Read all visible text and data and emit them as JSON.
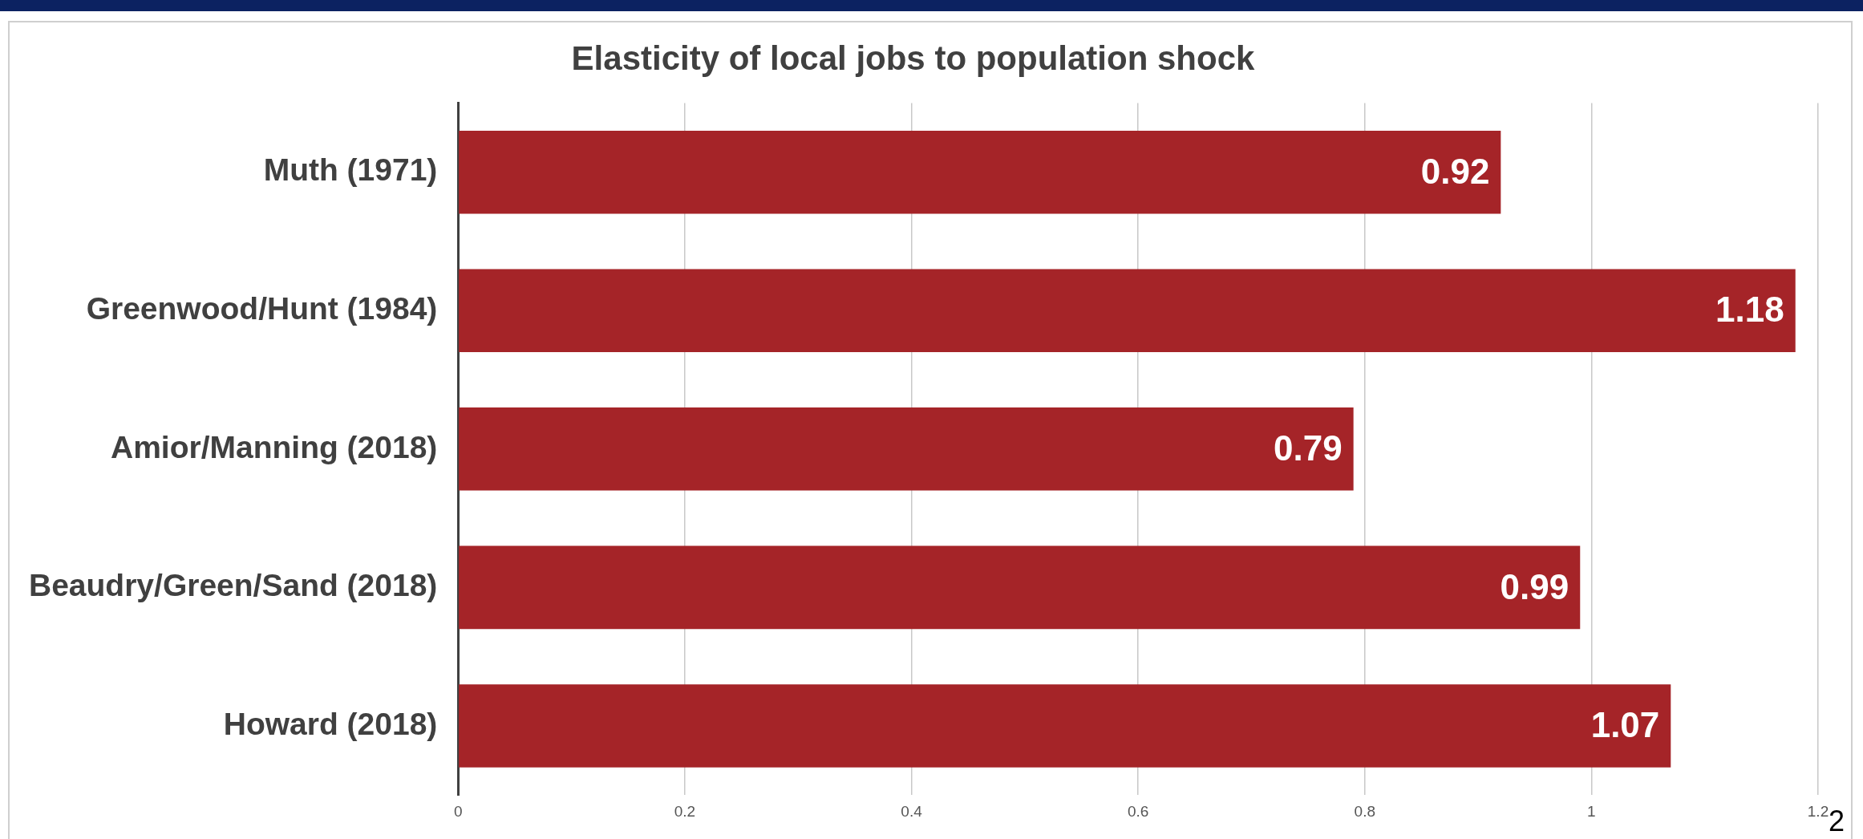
{
  "chart_data": {
    "type": "bar",
    "orientation": "horizontal",
    "title": "Elasticity of local jobs to population shock",
    "categories": [
      "Muth (1971)",
      "Greenwood/Hunt (1984)",
      "Amior/Manning (2018)",
      "Beaudry/Green/Sand (2018)",
      "Howard (2018)"
    ],
    "values": [
      0.92,
      1.18,
      0.79,
      0.99,
      1.07
    ],
    "color": "#a52428",
    "xlim": [
      0,
      1.2
    ],
    "xticks": [
      0,
      0.2,
      0.4,
      0.6,
      0.8,
      1,
      1.2
    ],
    "grid": "x",
    "data_labels": true,
    "annotations": [
      "2"
    ]
  }
}
